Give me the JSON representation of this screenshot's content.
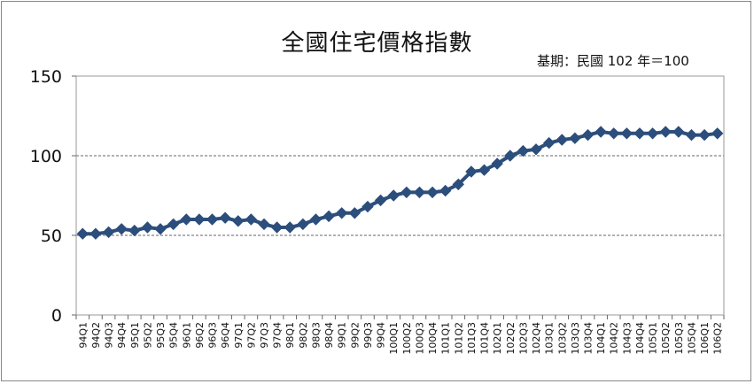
{
  "chart_data": {
    "type": "line",
    "title": "全國住宅價格指數",
    "subtitle": "基期：民國 102 年＝100",
    "xlabel": "",
    "ylabel": "",
    "ylim": [
      0,
      150
    ],
    "yticks": [
      "0",
      "50",
      "100",
      "150"
    ],
    "grid": "horizontal-dashed",
    "legend": "none",
    "line_color": "#2C4E7C",
    "x": [
      "94Q1",
      "94Q2",
      "94Q3",
      "94Q4",
      "95Q1",
      "95Q2",
      "95Q3",
      "95Q4",
      "96Q1",
      "96Q2",
      "96Q3",
      "96Q4",
      "97Q1",
      "97Q2",
      "97Q3",
      "97Q4",
      "98Q1",
      "98Q2",
      "98Q3",
      "98Q4",
      "99Q1",
      "99Q2",
      "99Q3",
      "99Q4",
      "100Q1",
      "100Q2",
      "100Q3",
      "100Q4",
      "101Q1",
      "101Q2",
      "101Q3",
      "101Q4",
      "102Q1",
      "102Q2",
      "102Q3",
      "102Q4",
      "103Q1",
      "103Q2",
      "103Q3",
      "103Q4",
      "104Q1",
      "104Q2",
      "104Q3",
      "104Q4",
      "105Q1",
      "105Q2",
      "105Q3",
      "105Q4",
      "106Q1",
      "106Q2"
    ],
    "series": [
      {
        "name": "",
        "values": [
          51,
          51,
          52,
          54,
          53,
          55,
          54,
          57,
          60,
          60,
          60,
          61,
          59,
          60,
          57,
          55,
          55,
          57,
          60,
          62,
          64,
          64,
          68,
          72,
          75,
          77,
          77,
          77,
          78,
          82,
          90,
          91,
          95,
          100,
          103,
          104,
          108,
          110,
          111,
          113,
          115,
          114,
          114,
          114,
          114,
          115,
          115,
          113,
          113,
          114
        ]
      }
    ]
  }
}
